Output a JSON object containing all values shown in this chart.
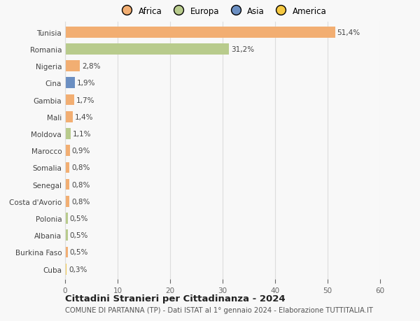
{
  "countries": [
    "Tunisia",
    "Romania",
    "Nigeria",
    "Cina",
    "Gambia",
    "Mali",
    "Moldova",
    "Marocco",
    "Somalia",
    "Senegal",
    "Costa d'Avorio",
    "Polonia",
    "Albania",
    "Burkina Faso",
    "Cuba"
  ],
  "values": [
    51.4,
    31.2,
    2.8,
    1.9,
    1.7,
    1.4,
    1.1,
    0.9,
    0.8,
    0.8,
    0.8,
    0.5,
    0.5,
    0.5,
    0.3
  ],
  "labels": [
    "51,4%",
    "31,2%",
    "2,8%",
    "1,9%",
    "1,7%",
    "1,4%",
    "1,1%",
    "0,9%",
    "0,8%",
    "0,8%",
    "0,8%",
    "0,5%",
    "0,5%",
    "0,5%",
    "0,3%"
  ],
  "continents": [
    "Africa",
    "Europa",
    "Africa",
    "Asia",
    "Africa",
    "Africa",
    "Europa",
    "Africa",
    "Africa",
    "Africa",
    "Africa",
    "Europa",
    "Europa",
    "Africa",
    "America"
  ],
  "colors": {
    "Africa": "#F2AE72",
    "Europa": "#B8CB8C",
    "Asia": "#6B8FC2",
    "America": "#F5C842"
  },
  "legend_order": [
    "Africa",
    "Europa",
    "Asia",
    "America"
  ],
  "legend_colors": [
    "#F2AE72",
    "#B8CB8C",
    "#6B8FC2",
    "#F5C842"
  ],
  "xlim": [
    0,
    60
  ],
  "xticks": [
    0,
    10,
    20,
    30,
    40,
    50,
    60
  ],
  "title": "Cittadini Stranieri per Cittadinanza - 2024",
  "subtitle": "COMUNE DI PARTANNA (TP) - Dati ISTAT al 1° gennaio 2024 - Elaborazione TUTTITALIA.IT",
  "bg_color": "#f8f8f8",
  "grid_color": "#dddddd",
  "bar_height": 0.65,
  "label_fontsize": 7.5,
  "ytick_fontsize": 7.5,
  "xtick_fontsize": 7.5,
  "title_fontsize": 9.5,
  "subtitle_fontsize": 7.2,
  "legend_fontsize": 8.5
}
